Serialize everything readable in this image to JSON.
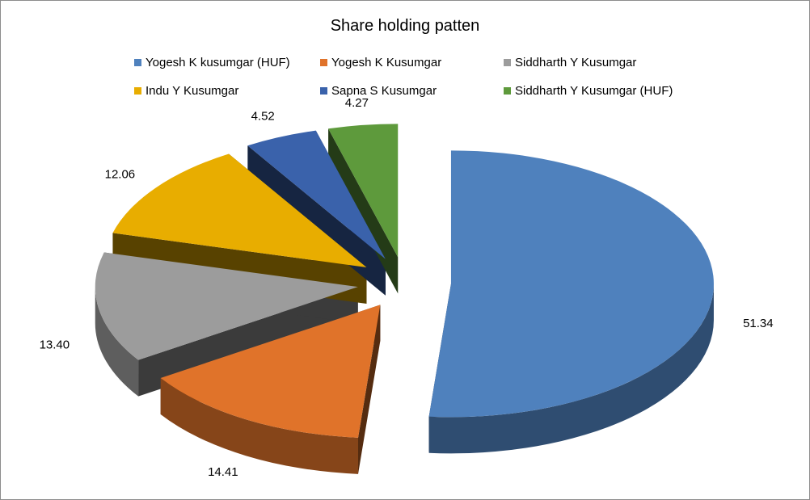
{
  "chart_data": {
    "type": "pie",
    "title": "Share holding patten",
    "legend_position": "top",
    "exploded": true,
    "three_d": true,
    "slices": [
      {
        "name": "Yogesh K kusumgar (HUF)",
        "value": 51.34,
        "label": "51.34",
        "color": "#4f81bd"
      },
      {
        "name": "Yogesh K Kusumgar",
        "value": 14.41,
        "label": "14.41",
        "color": "#e0732a"
      },
      {
        "name": "Siddharth  Y Kusumgar",
        "value": 13.4,
        "label": "13.40",
        "color": "#9c9c9c"
      },
      {
        "name": "Indu Y Kusumgar",
        "value": 12.06,
        "label": "12.06",
        "color": "#e8ad00"
      },
      {
        "name": "Sapna S Kusumgar",
        "value": 4.52,
        "label": "4.52",
        "color": "#3a62ab"
      },
      {
        "name": "Siddharth  Y Kusumgar (HUF)",
        "value": 4.27,
        "label": "4.27",
        "color": "#5e9a3c"
      }
    ]
  }
}
